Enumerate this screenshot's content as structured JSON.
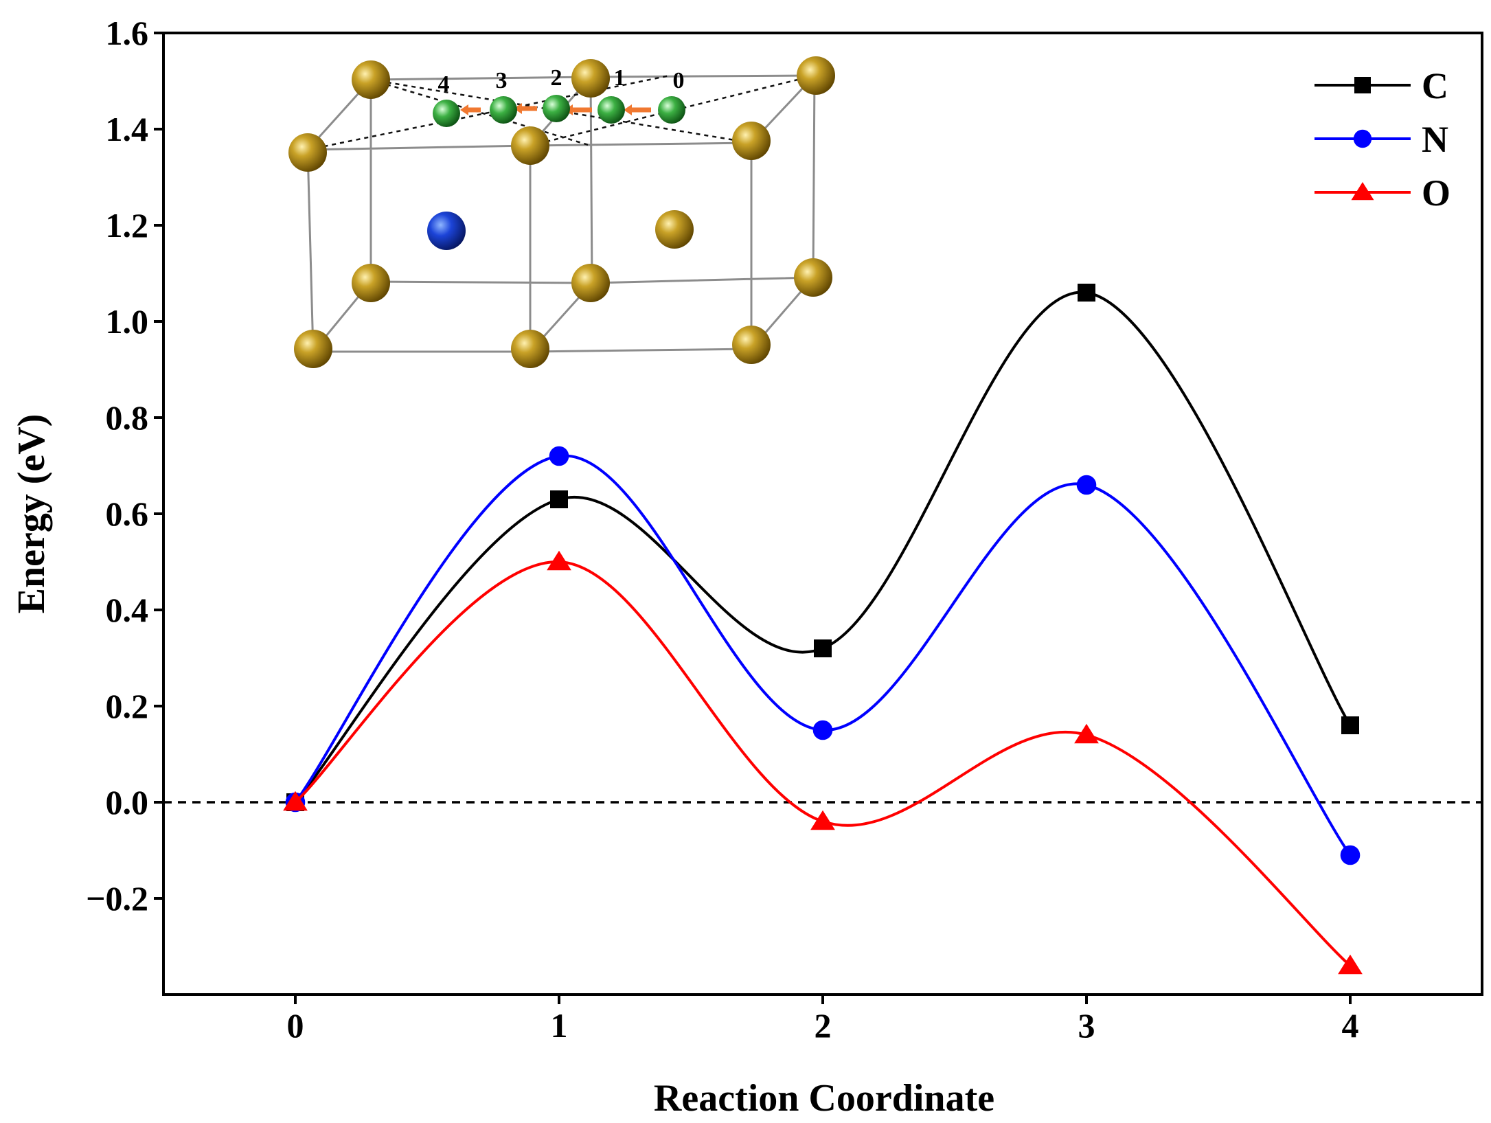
{
  "chart_data": {
    "type": "line",
    "title": "",
    "xlabel": "Reaction Coordinate",
    "ylabel": "Energy (eV)",
    "xlim": [
      -0.5,
      4.5
    ],
    "ylim": [
      -0.4,
      1.6
    ],
    "x_ticks": [
      0,
      1,
      2,
      3,
      4
    ],
    "x_tick_labels": [
      "0",
      "1",
      "2",
      "3",
      "4"
    ],
    "y_ticks": [
      -0.2,
      0.0,
      0.2,
      0.4,
      0.6,
      0.8,
      1.0,
      1.2,
      1.4,
      1.6
    ],
    "y_tick_labels": [
      "−0.2",
      "0.0",
      "0.2",
      "0.4",
      "0.6",
      "0.8",
      "1.0",
      "1.2",
      "1.4",
      "1.6"
    ],
    "reference_line": 0.0,
    "legend_position": "top-right",
    "x": [
      0,
      1,
      2,
      3,
      4
    ],
    "series": [
      {
        "name": "C",
        "color": "#000000",
        "marker": "square",
        "values": [
          0.0,
          0.63,
          0.32,
          1.06,
          0.16
        ]
      },
      {
        "name": "N",
        "color": "#0000ff",
        "marker": "circle",
        "values": [
          0.0,
          0.72,
          0.15,
          0.66,
          -0.11
        ]
      },
      {
        "name": "O",
        "color": "#ff0000",
        "marker": "triangle",
        "values": [
          0.0,
          0.5,
          -0.04,
          0.14,
          -0.34
        ]
      }
    ],
    "inset": {
      "description_labels": [
        "4",
        "3",
        "2",
        "1",
        "0"
      ],
      "atom_colors": {
        "host": "#b8860b",
        "dopant": "#1f3fd6",
        "interstitial": "#3cb043",
        "arrow": "#f07830"
      }
    }
  }
}
